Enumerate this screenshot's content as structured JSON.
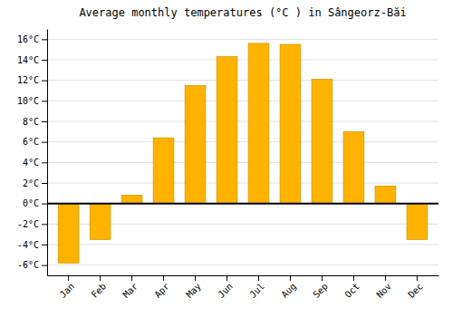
{
  "chart_data": {
    "type": "bar",
    "title": "Average monthly temperatures (°C ) in Sângeorz-Băi",
    "categories": [
      "Jan",
      "Feb",
      "Mar",
      "Apr",
      "May",
      "Jun",
      "Jul",
      "Aug",
      "Sep",
      "Oct",
      "Nov",
      "Dec"
    ],
    "values": [
      -5.8,
      -3.5,
      0.8,
      6.4,
      11.5,
      14.3,
      15.6,
      15.5,
      12.1,
      7.0,
      1.7,
      -3.5
    ],
    "color": "#FFB300",
    "ylim": [
      -7,
      17
    ],
    "yticks": [
      {
        "value": -6,
        "label": "-6°C"
      },
      {
        "value": -4,
        "label": "-4°C"
      },
      {
        "value": -2,
        "label": "-2°C"
      },
      {
        "value": 0,
        "label": "0°C"
      },
      {
        "value": 2,
        "label": "2°C"
      },
      {
        "value": 4,
        "label": "4°C"
      },
      {
        "value": 6,
        "label": "6°C"
      },
      {
        "value": 8,
        "label": "8°C"
      },
      {
        "value": 10,
        "label": "10°C"
      },
      {
        "value": 12,
        "label": "12°C"
      },
      {
        "value": 14,
        "label": "14°C"
      },
      {
        "value": 16,
        "label": "16°C"
      }
    ],
    "grid": true
  }
}
